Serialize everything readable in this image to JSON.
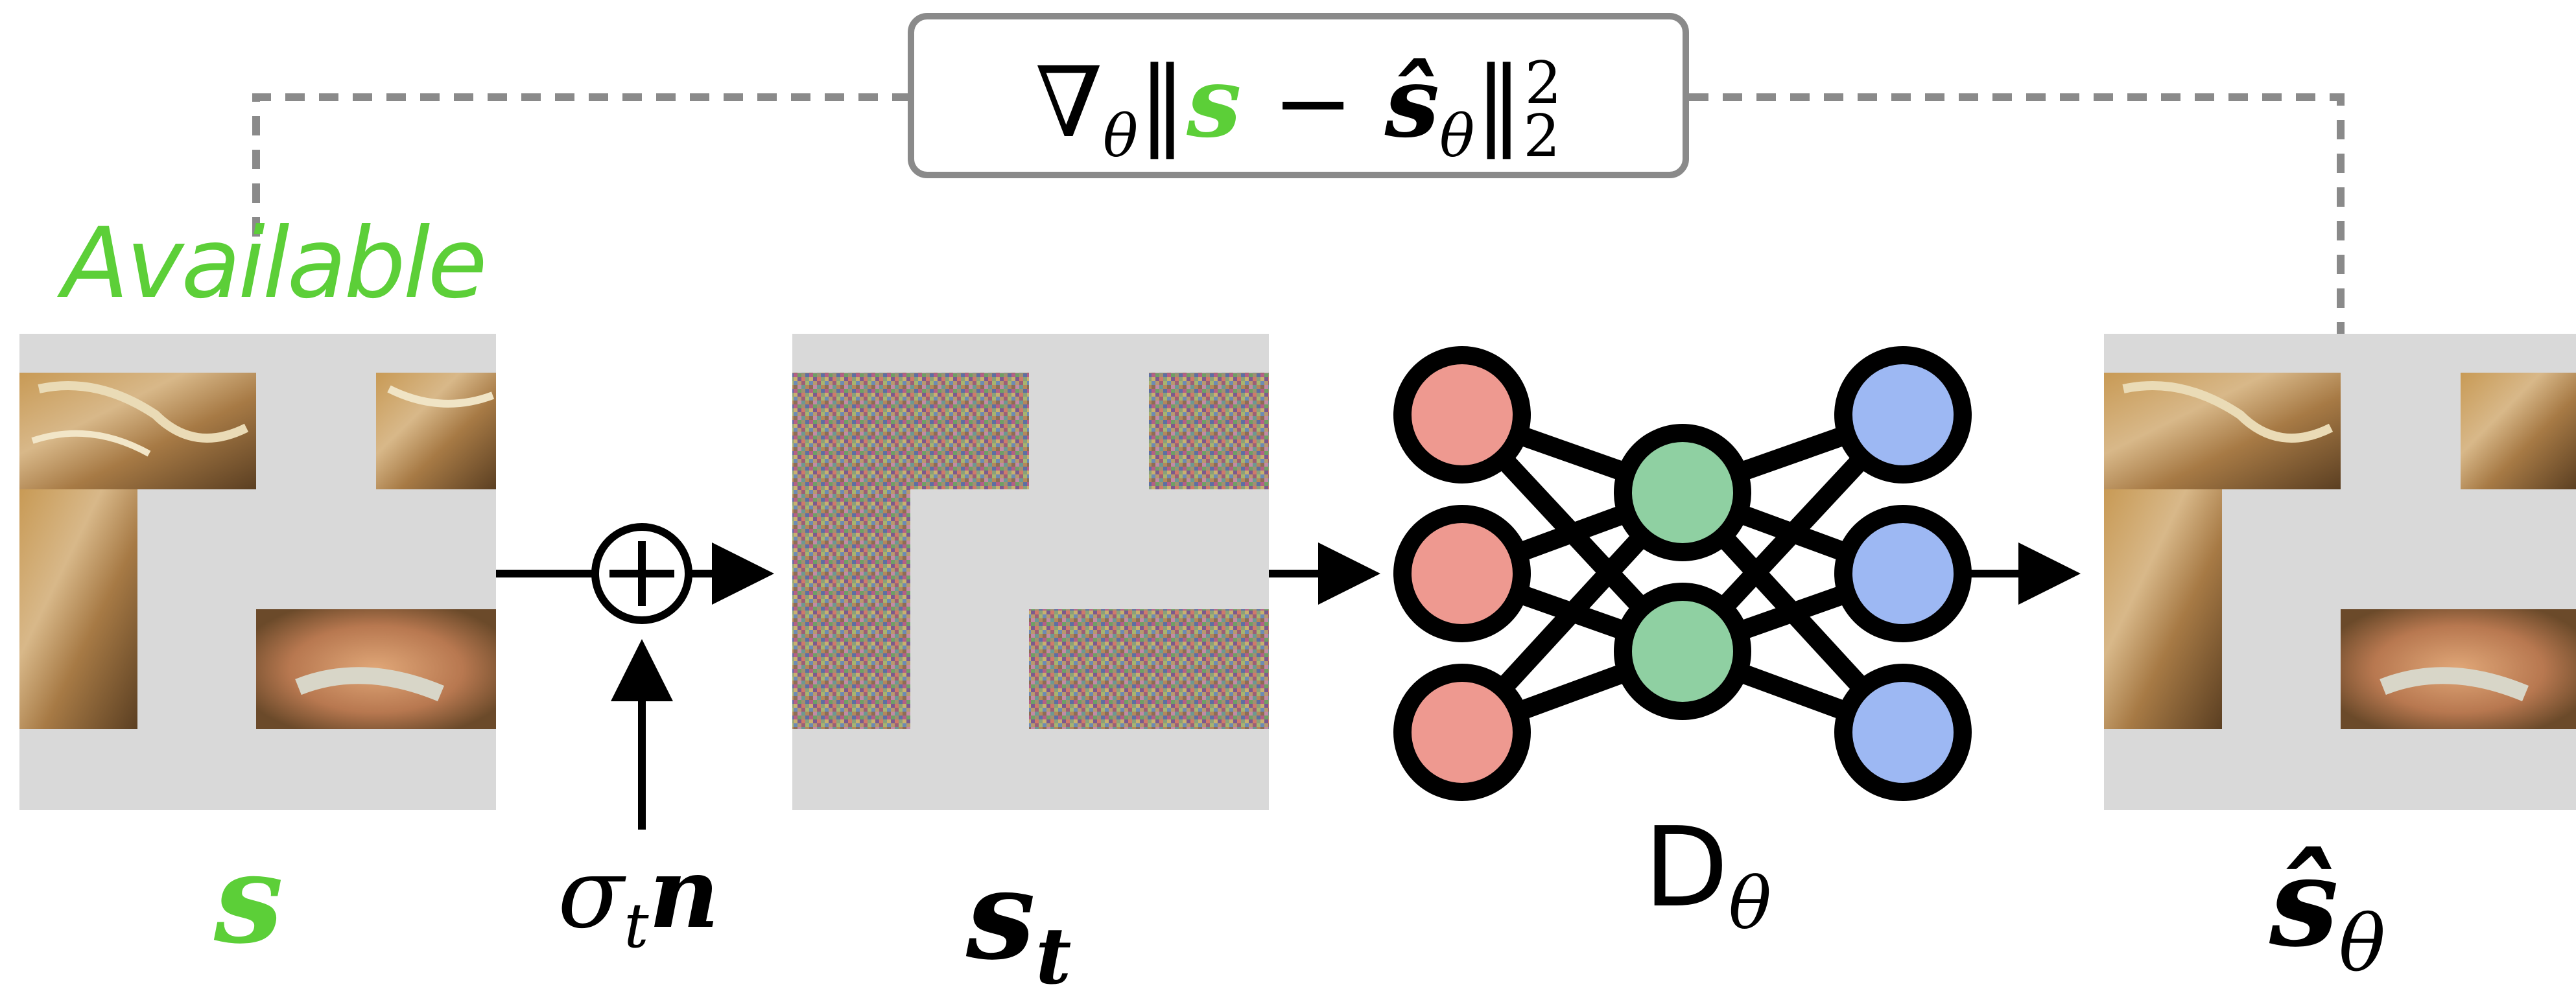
{
  "annotations": {
    "available_label": "Available"
  },
  "loss": {
    "nabla": "∇",
    "theta_sub": "θ",
    "norm_open": "‖",
    "s": "s",
    "minus": " − ",
    "s_hat": "ŝ",
    "theta_hat_sub": "θ",
    "norm_close": "‖",
    "norm_sub": "2",
    "norm_sup": "2"
  },
  "labels": {
    "input": "s",
    "noise_sigma": "σ",
    "noise_sub": "t",
    "noise_n": "n",
    "noisy": "s",
    "noisy_sub": "t",
    "denoiser": "D",
    "denoiser_sub": "θ",
    "output": "ŝ",
    "output_sub": "θ"
  },
  "colors": {
    "mask_gray": "#d9d9d9",
    "available_green": "#5ccf38",
    "dashed_gray": "#8a8a8a",
    "input_node": "#ee9990",
    "hidden_node": "#8fd0a2",
    "output_node": "#9db8f3"
  },
  "icons": {
    "sum": "circle-plus-icon",
    "network": "neural-network-icon"
  }
}
